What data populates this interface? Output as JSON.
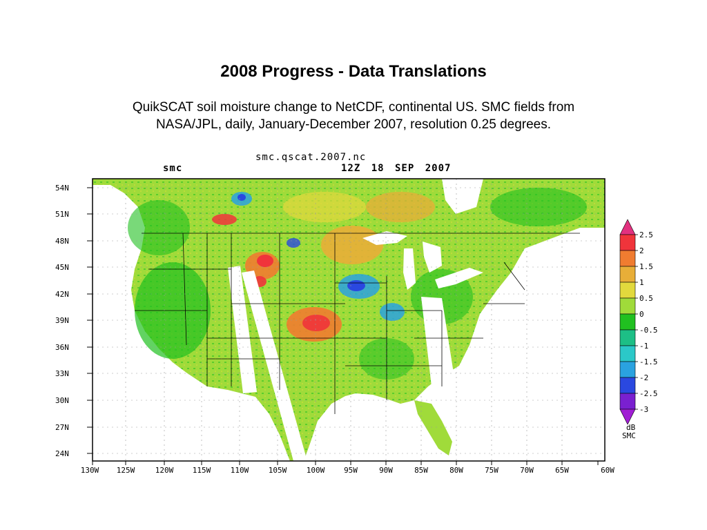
{
  "slide": {
    "title": "2008 Progress - Data Translations",
    "subtitle_line1": "QuikSCAT soil moisture change to NetCDF, continental US.  SMC fields from",
    "subtitle_line2": "NASA/JPL, daily, January-December 2007, resolution 0.25 degrees."
  },
  "map": {
    "file": "smc.qscat.2007.nc",
    "variable": "smc",
    "time": "12Z 18 SEP 2007",
    "lat_labels": [
      "54N",
      "51N",
      "48N",
      "45N",
      "42N",
      "39N",
      "36N",
      "33N",
      "30N",
      "27N",
      "24N"
    ],
    "lon_labels": [
      "130W",
      "125W",
      "120W",
      "115W",
      "110W",
      "105W",
      "100W",
      "95W",
      "90W",
      "85W",
      "80W",
      "75W",
      "70W",
      "65W",
      "60W"
    ]
  },
  "colorbar": {
    "unit_line1": "dB",
    "unit_line2": "SMC",
    "labels": [
      "2.5",
      "2",
      "1.5",
      "1",
      "0.5",
      "0",
      "-0.5",
      "-1",
      "-1.5",
      "-2",
      "-2.5",
      "-3"
    ],
    "colors": [
      "#e2317f",
      "#f0343b",
      "#f07c30",
      "#e8ae38",
      "#e2d93d",
      "#a0db3a",
      "#20c020",
      "#1dbf86",
      "#2bc8c8",
      "#2aa2e0",
      "#2a48e0",
      "#7a20d0",
      "#a01ed4"
    ]
  }
}
